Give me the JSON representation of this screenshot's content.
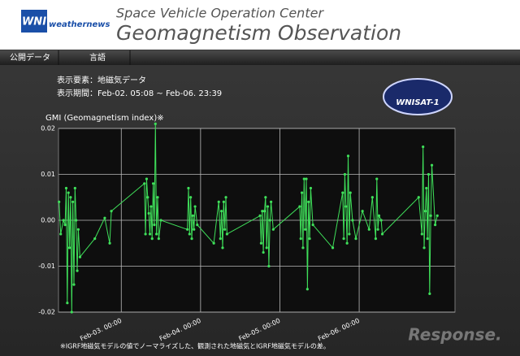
{
  "header": {
    "logo": "WNI",
    "brand": "weathernews",
    "subtitle": "Space Vehicle Operation Center",
    "title": "Geomagnetism Observation"
  },
  "menu": [
    "公開データ",
    "言語"
  ],
  "info": [
    "表示要素：地磁気データ",
    "表示期間：Feb-02. 05:08 ~ Feb-06. 23:39"
  ],
  "badge": "WNISAT-1",
  "watermark": "Response.",
  "chart_data": {
    "type": "line",
    "title": "GMI (Geomagnetism index)※",
    "note": "※IGRF地磁気モデルの値でノーマライズした、観測された地磁気とIGRF地磁気モデルの差。",
    "color": "#3fe05a",
    "grid": true,
    "xlim": [
      "Feb-02. 05:00",
      "Feb-07. 05:00"
    ],
    "xticks": [
      "Feb-03. 00:00",
      "Feb-04. 00:00",
      "Feb-05. 00:00",
      "Feb-06. 00:00"
    ],
    "ylim": [
      -0.02,
      0.02
    ],
    "yticks": [
      0.02,
      0.01,
      {
        "value": 0,
        "label": "0.00"
      },
      -0.01,
      -0.02
    ],
    "x": [
      "Feb-02. 05:10",
      "Feb-02. 05:40",
      "Feb-02. 06:30",
      "Feb-02. 07:00",
      "Feb-02. 07:20",
      "Feb-02. 07:40",
      "Feb-02. 08:00",
      "Feb-02. 08:20",
      "Feb-02. 08:40",
      "Feb-02. 09:00",
      "Feb-02. 09:20",
      "Feb-02. 09:40",
      "Feb-02. 10:00",
      "Feb-02. 10:20",
      "Feb-02. 10:40",
      "Feb-02. 11:00",
      "Feb-02. 11:30",
      "Feb-02. 16:00",
      "Feb-02. 19:00",
      "Feb-02. 20:30",
      "Feb-02. 21:00",
      "Feb-03. 07:00",
      "Feb-03. 07:20",
      "Feb-03. 07:40",
      "Feb-03. 08:00",
      "Feb-03. 08:20",
      "Feb-03. 08:40",
      "Feb-03. 09:00",
      "Feb-03. 09:20",
      "Feb-03. 09:40",
      "Feb-03. 10:00",
      "Feb-03. 10:20",
      "Feb-03. 10:40",
      "Feb-03. 11:00",
      "Feb-03. 11:20",
      "Feb-03. 12:00",
      "Feb-03. 20:00",
      "Feb-03. 20:20",
      "Feb-03. 20:40",
      "Feb-03. 21:00",
      "Feb-03. 21:20",
      "Feb-03. 21:40",
      "Feb-03. 22:00",
      "Feb-03. 22:20",
      "Feb-03. 23:00",
      "Feb-04. 04:00",
      "Feb-04. 05:30",
      "Feb-04. 06:00",
      "Feb-04. 06:20",
      "Feb-04. 06:40",
      "Feb-04. 07:00",
      "Feb-04. 07:20",
      "Feb-04. 07:40",
      "Feb-04. 08:00",
      "Feb-04. 18:00",
      "Feb-04. 18:20",
      "Feb-04. 18:40",
      "Feb-04. 19:00",
      "Feb-04. 19:20",
      "Feb-04. 19:40",
      "Feb-04. 20:00",
      "Feb-04. 20:20",
      "Feb-04. 20:40",
      "Feb-04. 21:00",
      "Feb-04. 21:20",
      "Feb-04. 22:00",
      "Feb-05. 06:00",
      "Feb-05. 06:20",
      "Feb-05. 06:40",
      "Feb-05. 07:00",
      "Feb-05. 07:20",
      "Feb-05. 07:40",
      "Feb-05. 08:00",
      "Feb-05. 08:20",
      "Feb-05. 08:40",
      "Feb-05. 09:00",
      "Feb-05. 09:20",
      "Feb-05. 10:00",
      "Feb-05. 16:00",
      "Feb-05. 19:00",
      "Feb-05. 19:20",
      "Feb-05. 19:40",
      "Feb-05. 20:00",
      "Feb-05. 20:20",
      "Feb-05. 20:40",
      "Feb-05. 21:00",
      "Feb-05. 21:20",
      "Feb-05. 22:00",
      "Feb-05. 23:00",
      "Feb-06. 01:00",
      "Feb-06. 03:00",
      "Feb-06. 04:00",
      "Feb-06. 05:00",
      "Feb-06. 05:20",
      "Feb-06. 05:40",
      "Feb-06. 06:00",
      "Feb-06. 06:40",
      "Feb-06. 07:00",
      "Feb-06. 18:00",
      "Feb-06. 19:00",
      "Feb-06. 19:20",
      "Feb-06. 19:40",
      "Feb-06. 20:00",
      "Feb-06. 20:20",
      "Feb-06. 20:40",
      "Feb-06. 21:00",
      "Feb-06. 21:20",
      "Feb-06. 21:40",
      "Feb-06. 22:00",
      "Feb-06. 23:00",
      "Feb-06. 23:39"
    ],
    "values": [
      0.004,
      -0.003,
      0.0,
      -0.001,
      0.007,
      -0.018,
      0.006,
      -0.006,
      0.005,
      -0.02,
      0.004,
      -0.014,
      0.007,
      0.0,
      -0.011,
      -0.002,
      -0.008,
      -0.004,
      0.0005,
      -0.005,
      0.002,
      0.008,
      -0.003,
      0.009,
      0.005,
      0.0015,
      -0.003,
      0.003,
      -0.004,
      0.008,
      -0.001,
      0.021,
      -0.003,
      0.005,
      -0.004,
      0.0,
      -0.002,
      0.007,
      -0.003,
      0.005,
      -0.004,
      0.001,
      -0.002,
      0.003,
      -0.001,
      -0.005,
      0.004,
      -0.004,
      0.002,
      -0.006,
      0.004,
      -0.002,
      0.005,
      -0.003,
      0.001,
      -0.005,
      0.002,
      -0.007,
      0.002,
      0.005,
      -0.006,
      0.003,
      -0.01,
      0.0,
      0.004,
      -0.002,
      0.003,
      -0.004,
      0.006,
      -0.006,
      0.009,
      -0.002,
      0.009,
      -0.015,
      0.004,
      -0.004,
      0.007,
      -0.001,
      -0.006,
      0.006,
      -0.004,
      0.01,
      0.003,
      -0.005,
      0.014,
      -0.003,
      0.006,
      0.0,
      -0.004,
      0.002,
      -0.002,
      0.005,
      -0.004,
      0.009,
      -0.002,
      0.001,
      0.0,
      -0.003,
      0.005,
      -0.003,
      0.016,
      -0.006,
      0.002,
      0.007,
      -0.004,
      0.01,
      -0.016,
      0.001,
      0.012,
      -0.001,
      0.001
    ]
  }
}
